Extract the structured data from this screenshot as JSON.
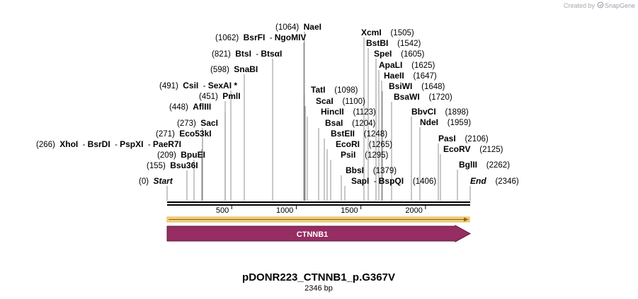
{
  "credit": {
    "text": "Created by",
    "brand": "SnapGene"
  },
  "map": {
    "title": "pDONR223_CTNNB1_p.G367V",
    "length_label": "2346 bp",
    "total_bp": 2346,
    "feature": {
      "name": "CTNNB1",
      "start": 0,
      "end": 2346,
      "direction": "forward"
    },
    "ruler_ticks": [
      "500",
      "1000",
      "1500",
      "2000"
    ],
    "sites": [
      {
        "parts": [
          {
            "n": "Start",
            "it": true
          }
        ],
        "pos": "(0)",
        "bp": 0,
        "side": "left"
      },
      {
        "parts": [
          {
            "n": "Bsu36I"
          }
        ],
        "pos": "(155)",
        "bp": 155,
        "side": "left"
      },
      {
        "parts": [
          {
            "n": "BpuEI"
          }
        ],
        "pos": "(209)",
        "bp": 209,
        "side": "left"
      },
      {
        "parts": [
          {
            "n": "XhoI"
          },
          {
            "n": "BsrDI"
          },
          {
            "n": "PspXI"
          },
          {
            "n": "PaeR7I"
          }
        ],
        "pos": "(266)",
        "bp": 266,
        "side": "left"
      },
      {
        "parts": [
          {
            "n": "Eco53kI"
          }
        ],
        "pos": "(271)",
        "bp": 271,
        "side": "left"
      },
      {
        "parts": [
          {
            "n": "SacI"
          }
        ],
        "pos": "(273)",
        "bp": 273,
        "side": "left"
      },
      {
        "parts": [
          {
            "n": "AflIII"
          }
        ],
        "pos": "(448)",
        "bp": 448,
        "side": "left"
      },
      {
        "parts": [
          {
            "n": "PmlI"
          }
        ],
        "pos": "(451)",
        "bp": 451,
        "side": "left"
      },
      {
        "parts": [
          {
            "n": "CsiI"
          },
          {
            "n": "SexAI *"
          }
        ],
        "pos": "(491)",
        "bp": 491,
        "side": "left"
      },
      {
        "parts": [
          {
            "n": "SnaBI"
          }
        ],
        "pos": "(598)",
        "bp": 598,
        "side": "left"
      },
      {
        "parts": [
          {
            "n": "BtsI"
          },
          {
            "n": "BtsαI"
          }
        ],
        "pos": "(821)",
        "bp": 821,
        "side": "left"
      },
      {
        "parts": [
          {
            "n": "BsrFI"
          },
          {
            "n": "NgoMIV"
          }
        ],
        "pos": "(1062)",
        "bp": 1062,
        "side": "left"
      },
      {
        "parts": [
          {
            "n": "NaeI"
          }
        ],
        "pos": "(1064)",
        "bp": 1064,
        "side": "left"
      },
      {
        "parts": [
          {
            "n": "TatI"
          }
        ],
        "pos": "(1098)",
        "bp": 1098,
        "side": "right"
      },
      {
        "parts": [
          {
            "n": "ScaI"
          }
        ],
        "pos": "(1100)",
        "bp": 1100,
        "side": "right"
      },
      {
        "parts": [
          {
            "n": "HincII"
          }
        ],
        "pos": "(1123)",
        "bp": 1123,
        "side": "right"
      },
      {
        "parts": [
          {
            "n": "BsaI"
          }
        ],
        "pos": "(1204)",
        "bp": 1204,
        "side": "right"
      },
      {
        "parts": [
          {
            "n": "BstEII"
          }
        ],
        "pos": "(1248)",
        "bp": 1248,
        "side": "right"
      },
      {
        "parts": [
          {
            "n": "EcoRI"
          }
        ],
        "pos": "(1265)",
        "bp": 1265,
        "side": "right"
      },
      {
        "parts": [
          {
            "n": "PsiI"
          }
        ],
        "pos": "(1295)",
        "bp": 1295,
        "side": "right"
      },
      {
        "parts": [
          {
            "n": "BbsI"
          }
        ],
        "pos": "(1379)",
        "bp": 1379,
        "side": "right"
      },
      {
        "parts": [
          {
            "n": "SapI"
          },
          {
            "n": "BspQI"
          }
        ],
        "pos": "(1406)",
        "bp": 1406,
        "side": "right"
      },
      {
        "parts": [
          {
            "n": "XcmI"
          }
        ],
        "pos": "(1505)",
        "bp": 1505,
        "side": "right"
      },
      {
        "parts": [
          {
            "n": "BstBI"
          }
        ],
        "pos": "(1542)",
        "bp": 1542,
        "side": "right"
      },
      {
        "parts": [
          {
            "n": "SpeI"
          }
        ],
        "pos": "(1605)",
        "bp": 1605,
        "side": "right"
      },
      {
        "parts": [
          {
            "n": "ApaLI"
          }
        ],
        "pos": "(1625)",
        "bp": 1625,
        "side": "right"
      },
      {
        "parts": [
          {
            "n": "HaeII"
          }
        ],
        "pos": "(1647)",
        "bp": 1647,
        "side": "right"
      },
      {
        "parts": [
          {
            "n": "BsiWI"
          }
        ],
        "pos": "(1648)",
        "bp": 1648,
        "side": "right"
      },
      {
        "parts": [
          {
            "n": "BsaWI"
          }
        ],
        "pos": "(1720)",
        "bp": 1720,
        "side": "right"
      },
      {
        "parts": [
          {
            "n": "BbvCI"
          }
        ],
        "pos": "(1898)",
        "bp": 1898,
        "side": "right"
      },
      {
        "parts": [
          {
            "n": "NdeI"
          }
        ],
        "pos": "(1959)",
        "bp": 1959,
        "side": "right"
      },
      {
        "parts": [
          {
            "n": "PasI"
          }
        ],
        "pos": "(2106)",
        "bp": 2106,
        "side": "right"
      },
      {
        "parts": [
          {
            "n": "EcoRV"
          }
        ],
        "pos": "(2125)",
        "bp": 2125,
        "side": "right"
      },
      {
        "parts": [
          {
            "n": "BglII"
          }
        ],
        "pos": "(2262)",
        "bp": 2262,
        "side": "right"
      },
      {
        "parts": [
          {
            "n": "End",
            "it": true
          }
        ],
        "pos": "(2346)",
        "bp": 2346,
        "side": "right"
      }
    ]
  }
}
